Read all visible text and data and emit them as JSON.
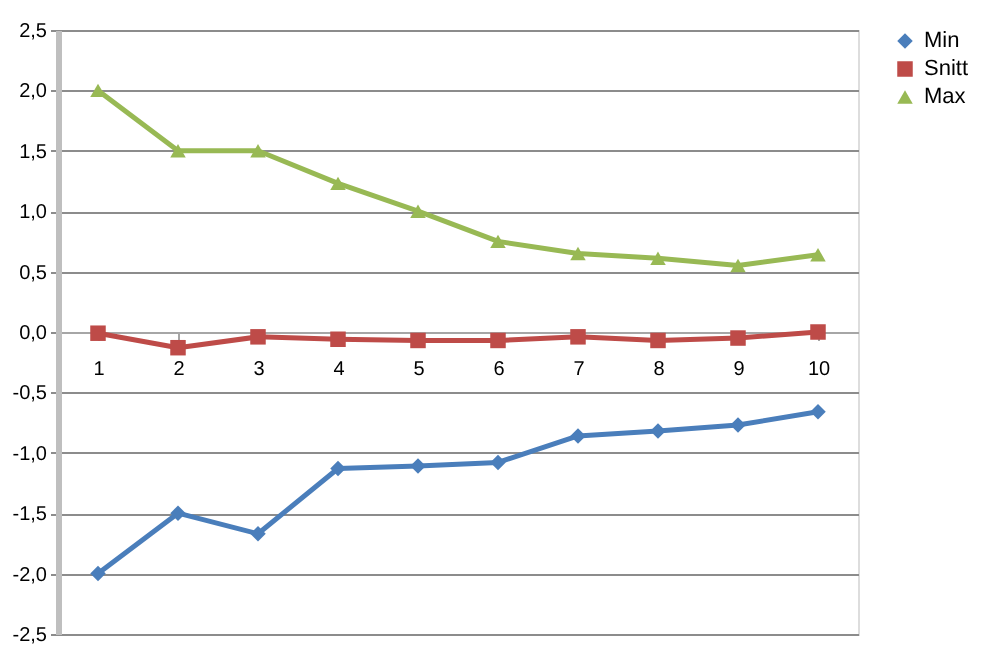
{
  "chart_data": {
    "type": "line",
    "categories": [
      "1",
      "2",
      "3",
      "4",
      "5",
      "6",
      "7",
      "8",
      "9",
      "10"
    ],
    "series": [
      {
        "name": "Min",
        "color": "#4a7ebb",
        "marker": "diamond",
        "values": [
          -2.0,
          -1.5,
          -1.67,
          -1.13,
          -1.11,
          -1.08,
          -0.86,
          -0.82,
          -0.77,
          -0.66
        ]
      },
      {
        "name": "Snitt",
        "color": "#be4b48",
        "marker": "square",
        "values": [
          -0.01,
          -0.13,
          -0.04,
          -0.06,
          -0.07,
          -0.07,
          -0.04,
          -0.07,
          -0.05,
          0.0
        ]
      },
      {
        "name": "Max",
        "color": "#98b954",
        "marker": "triangle",
        "values": [
          2.0,
          1.5,
          1.5,
          1.23,
          1.0,
          0.75,
          0.65,
          0.61,
          0.55,
          0.64
        ]
      }
    ],
    "ylim": [
      -2.5,
      2.5
    ],
    "yticks": [
      {
        "value": -2.5,
        "label": "-2,5"
      },
      {
        "value": -2.0,
        "label": "-2,0"
      },
      {
        "value": -1.5,
        "label": "-1,5"
      },
      {
        "value": -1.0,
        "label": "-1,0"
      },
      {
        "value": -0.5,
        "label": "-0,5"
      },
      {
        "value": 0,
        "label": "0,0"
      },
      {
        "value": 0.5,
        "label": "0,5"
      },
      {
        "value": 1.0,
        "label": "1,0"
      },
      {
        "value": 1.5,
        "label": "1,5"
      },
      {
        "value": 2.0,
        "label": "2,0"
      },
      {
        "value": 2.5,
        "label": "2,5"
      }
    ],
    "grid": "y",
    "legend": "right",
    "line_style": "solid"
  }
}
